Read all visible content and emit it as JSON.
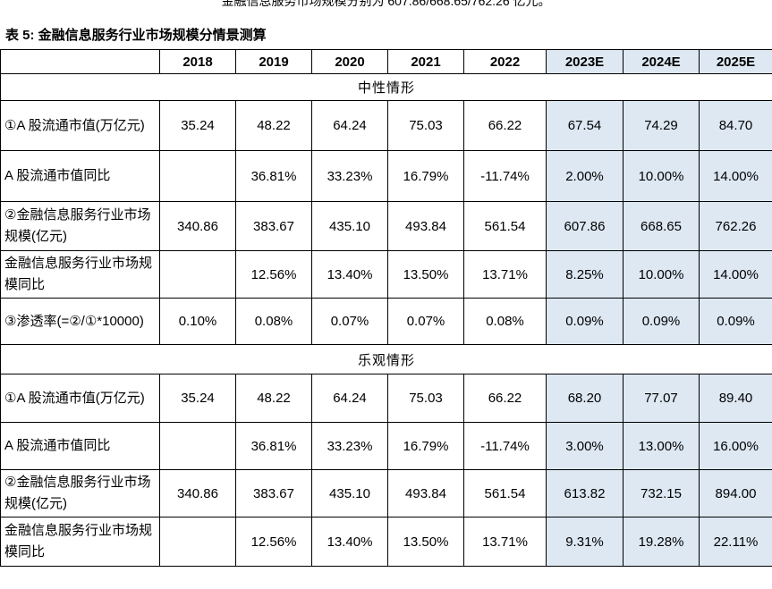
{
  "intro": "金融信息服务市场规模分别为 607.86/668.65/762.26 亿元。",
  "title": "表 5: 金融信息服务行业市场规模分情景测算",
  "table": {
    "header": [
      null,
      "2018",
      "2019",
      "2020",
      "2021",
      "2022",
      "2023E",
      "2024E",
      "2025E"
    ],
    "sections": [
      {
        "title": "中性情形",
        "rows": [
          [
            "①A 股流通市值(万亿元)",
            "35.24",
            "48.22",
            "64.24",
            "75.03",
            "66.22",
            "67.54",
            "74.29",
            "84.70"
          ],
          [
            "A 股流通市值同比",
            null,
            "36.81%",
            "33.23%",
            "16.79%",
            "-11.74%",
            "2.00%",
            "10.00%",
            "14.00%"
          ],
          [
            "②金融信息服务行业市场规模(亿元)",
            "340.86",
            "383.67",
            "435.10",
            "493.84",
            "561.54",
            "607.86",
            "668.65",
            "762.26"
          ],
          [
            "金融信息服务行业市场规模同比",
            null,
            "12.56%",
            "13.40%",
            "13.50%",
            "13.71%",
            "8.25%",
            "10.00%",
            "14.00%"
          ],
          [
            "③渗透率(=②/①*10000)",
            "0.10%",
            "0.08%",
            "0.07%",
            "0.07%",
            "0.08%",
            "0.09%",
            "0.09%",
            "0.09%"
          ]
        ]
      },
      {
        "title": "乐观情形",
        "rows": [
          [
            "①A 股流通市值(万亿元)",
            "35.24",
            "48.22",
            "64.24",
            "75.03",
            "66.22",
            "68.20",
            "77.07",
            "89.40"
          ],
          [
            "A 股流通市值同比",
            null,
            "36.81%",
            "33.23%",
            "16.79%",
            "-11.74%",
            "3.00%",
            "13.00%",
            "16.00%"
          ],
          [
            "②金融信息服务行业市场规模(亿元)",
            "340.86",
            "383.67",
            "435.10",
            "493.84",
            "561.54",
            "613.82",
            "732.15",
            "894.00"
          ],
          [
            "金融信息服务行业市场规模同比",
            null,
            "12.56%",
            "13.40%",
            "13.50%",
            "13.71%",
            "9.31%",
            "19.28%",
            "22.11%"
          ]
        ]
      }
    ]
  }
}
